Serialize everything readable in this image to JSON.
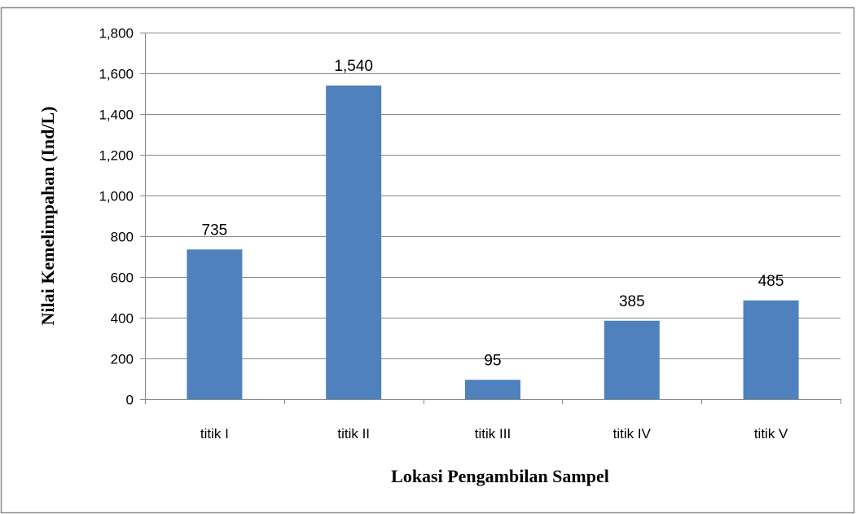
{
  "chart_data": {
    "type": "bar",
    "categories": [
      "titik I",
      "titik II",
      "titik III",
      "titik IV",
      "titik V"
    ],
    "values": [
      735,
      1540,
      95,
      385,
      485
    ],
    "data_labels": [
      "735",
      "1,540",
      "95",
      "385",
      "485"
    ],
    "xlabel": "Lokasi Pengambilan Sampel",
    "ylabel": "Nilai Kemelimpahan (Ind/L)",
    "ylim": [
      0,
      1800
    ],
    "yticks": [
      0,
      200,
      400,
      600,
      800,
      1000,
      1200,
      1400,
      1600,
      1800
    ],
    "ytick_labels": [
      "0",
      "200",
      "400",
      "600",
      "800",
      "1,000",
      "1,200",
      "1,400",
      "1,600",
      "1,800"
    ],
    "grid": true,
    "legend": "none",
    "colors": {
      "bar": "#4f81bd",
      "grid": "#888888",
      "axis": "#888888",
      "frame": "#888888"
    }
  }
}
